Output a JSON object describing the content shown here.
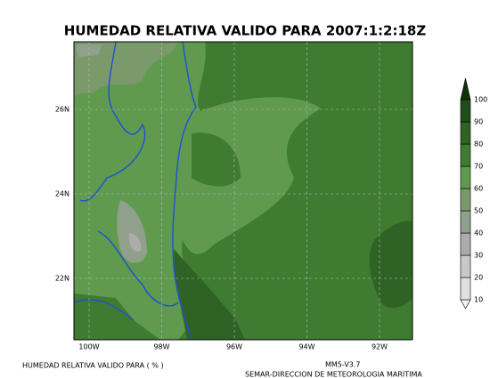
{
  "title": "HUMEDAD RELATIVA VALIDO PARA 2007:1:2:18Z",
  "map": {
    "lon_labels": [
      "100W",
      "98W",
      "96W",
      "94W",
      "92W"
    ],
    "lat_labels": [
      "26N",
      "24N",
      "22N"
    ]
  },
  "colorbar": {
    "levels": [
      10,
      20,
      30,
      40,
      50,
      60,
      70,
      80,
      90,
      100
    ],
    "colors": [
      "#f4f4f4",
      "#e0e0e0",
      "#c8c8c8",
      "#acacac",
      "#90a08a",
      "#7a9a6c",
      "#5f9a4f",
      "#3f7b31",
      "#2f6325",
      "#1f4c19",
      "#0f3209"
    ]
  },
  "footer": {
    "left": "HUMEDAD RELATIVA VALIDO PARA ( % )",
    "model": "MM5-V3.7",
    "institution": "SEMAR-DIRECCION DE METEOROLOGIA MARITIMA"
  }
}
